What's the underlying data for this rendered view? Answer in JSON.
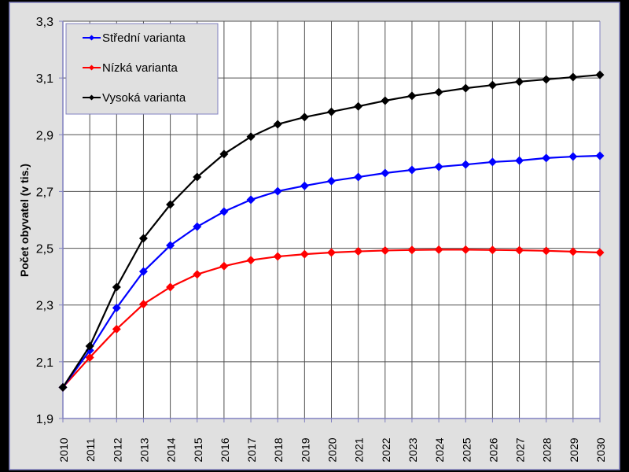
{
  "chart_data": {
    "type": "line",
    "title": "",
    "xlabel": "",
    "ylabel": "Počet obyvatel (v tis.)",
    "ylim": [
      1.9,
      3.3
    ],
    "yticks": [
      "1,9",
      "2,1",
      "2,3",
      "2,5",
      "2,7",
      "2,9",
      "3,1",
      "3,3"
    ],
    "ytick_values": [
      1.9,
      2.1,
      2.3,
      2.5,
      2.7,
      2.9,
      3.1,
      3.3
    ],
    "grid": true,
    "legend_position": "top-left",
    "x": [
      "2010",
      "2011",
      "2012",
      "2013",
      "2014",
      "2015",
      "2016",
      "2017",
      "2018",
      "2019",
      "2020",
      "2021",
      "2022",
      "2023",
      "2024",
      "2025",
      "2026",
      "2027",
      "2028",
      "2029",
      "2030"
    ],
    "series": [
      {
        "name": "Střední varianta",
        "color": "#0000ff",
        "values": [
          2.01,
          2.14,
          2.29,
          2.418,
          2.51,
          2.576,
          2.629,
          2.671,
          2.701,
          2.72,
          2.737,
          2.751,
          2.765,
          2.776,
          2.787,
          2.795,
          2.804,
          2.809,
          2.818,
          2.823,
          2.826
        ]
      },
      {
        "name": "Nízká varianta",
        "color": "#ff0000",
        "values": [
          2.01,
          2.115,
          2.215,
          2.303,
          2.363,
          2.408,
          2.437,
          2.458,
          2.471,
          2.479,
          2.485,
          2.489,
          2.492,
          2.494,
          2.495,
          2.495,
          2.494,
          2.493,
          2.491,
          2.488,
          2.485
        ]
      },
      {
        "name": "Vysoká varianta",
        "color": "#000000",
        "values": [
          2.01,
          2.155,
          2.363,
          2.535,
          2.654,
          2.751,
          2.832,
          2.893,
          2.937,
          2.962,
          2.981,
          3.0,
          3.02,
          3.037,
          3.05,
          3.064,
          3.075,
          3.087,
          3.095,
          3.103,
          3.111
        ]
      }
    ]
  }
}
